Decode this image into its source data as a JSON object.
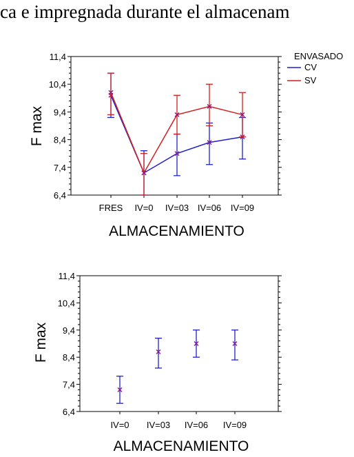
{
  "header": {
    "caption": "ca e impregnada durante el almacenam"
  },
  "chart_data": [
    {
      "type": "line",
      "title": "",
      "xlabel": "ALMACENAMIENTO",
      "ylabel": "F max",
      "categories": [
        "FRES",
        "IV=0",
        "IV=03",
        "IV=06",
        "IV=09"
      ],
      "ylim": [
        6.4,
        11.4
      ],
      "yticks": [
        "6,4",
        "7,4",
        "8,4",
        "9,4",
        "10,4",
        "11,4"
      ],
      "legend": {
        "title": "ENVASADO",
        "placement": "right-outside"
      },
      "series": [
        {
          "name": "CV",
          "color": "#1f1fcf",
          "values": [
            10.0,
            7.2,
            7.9,
            8.3,
            8.5
          ],
          "err_low": [
            9.2,
            6.4,
            7.1,
            7.5,
            7.7
          ],
          "err_high": [
            10.8,
            8.0,
            8.6,
            9.0,
            9.2
          ]
        },
        {
          "name": "SV",
          "color": "#d21f1f",
          "values": [
            10.1,
            7.2,
            9.3,
            9.6,
            9.3
          ],
          "err_low": [
            9.3,
            6.4,
            8.6,
            8.9,
            8.5
          ],
          "err_high": [
            10.8,
            7.9,
            10.0,
            10.4,
            10.1
          ]
        }
      ]
    },
    {
      "type": "scatter",
      "title": "",
      "xlabel": "ALMACENAMIENTO",
      "ylabel": "F max",
      "categories": [
        "IV=0",
        "IV=03",
        "IV=06",
        "IV=09"
      ],
      "ylim": [
        6.4,
        11.4
      ],
      "yticks": [
        "6,4",
        "7,4",
        "8,4",
        "9,4",
        "10,4",
        "11,4"
      ],
      "color": "#1f1fcf",
      "values": [
        7.2,
        8.6,
        8.9,
        8.9
      ],
      "err_low": [
        6.7,
        8.0,
        8.4,
        8.3
      ],
      "err_high": [
        7.7,
        9.1,
        9.4,
        9.4
      ]
    }
  ]
}
